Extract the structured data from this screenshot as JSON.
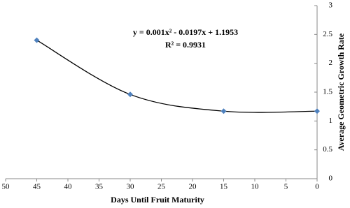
{
  "chart_data": {
    "type": "scatter",
    "x_label": "Days Until Fruit Maturity",
    "y_label": "Average Geometric Growth Rate",
    "annotations": [
      "y = 0.001x² - 0.0197x + 1.1953",
      "R² = 0.9931"
    ],
    "series": [
      {
        "color": "#4f81bd",
        "x": [
          45,
          30,
          15,
          0
        ],
        "values": [
          2.4,
          1.46,
          1.17,
          1.17
        ]
      }
    ],
    "trendline_color": "#000000",
    "xlim": [
      50,
      0
    ],
    "xticks": [
      50,
      45,
      40,
      35,
      30,
      25,
      20,
      15,
      10,
      5,
      0
    ],
    "ylim": [
      0,
      3
    ],
    "yticks": [
      0,
      0.5,
      1,
      1.5,
      2,
      2.5,
      3
    ],
    "y_axis_side": "right",
    "grid": false
  }
}
